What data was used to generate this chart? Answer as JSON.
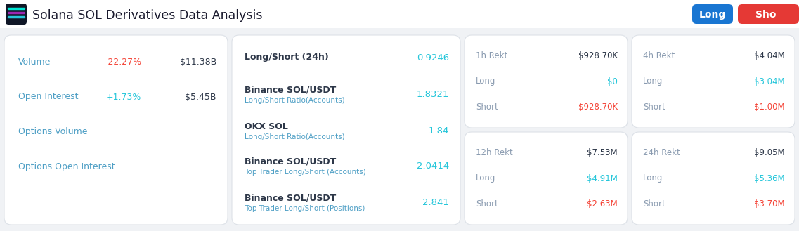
{
  "title": "Solana SOL Derivatives Data Analysis",
  "bg_color": "#f0f2f5",
  "card_color": "#ffffff",
  "header_bg": "#ffffff",
  "title_color": "#1a1a2e",
  "panel1": {
    "rows": [
      {
        "label": "Volume",
        "pct": "-22.27%",
        "pct_color": "#f44336",
        "val": "$11.38B"
      },
      {
        "label": "Open Interest",
        "pct": "+1.73%",
        "pct_color": "#26c6da",
        "val": "$5.45B"
      },
      {
        "label": "Options Volume",
        "pct": "",
        "pct_color": "",
        "val": ""
      },
      {
        "label": "Options Open Interest",
        "pct": "",
        "pct_color": "",
        "val": ""
      }
    ]
  },
  "panel2": {
    "rows": [
      {
        "label1": "Long/Short (24h)",
        "label2": "",
        "val": "0.9246"
      },
      {
        "label1": "Binance SOL/USDT",
        "label2": "Long/Short Ratio(Accounts)",
        "val": "1.8321"
      },
      {
        "label1": "OKX SOL",
        "label2": "Long/Short Ratio(Accounts)",
        "val": "1.84"
      },
      {
        "label1": "Binance SOL/USDT",
        "label2": "Top Trader Long/Short (Accounts)",
        "val": "2.0414"
      },
      {
        "label1": "Binance SOL/USDT",
        "label2": "Top Trader Long/Short (Positions)",
        "val": "2.841"
      }
    ]
  },
  "rekt_cards": [
    {
      "title": "1h Rekt",
      "title_val": "$928.70K",
      "long_val": "$0",
      "long_color": "#26c6da",
      "short_val": "$928.70K",
      "short_color": "#f44336"
    },
    {
      "title": "4h Rekt",
      "title_val": "$4.04M",
      "long_val": "$3.04M",
      "long_color": "#26c6da",
      "short_val": "$1.00M",
      "short_color": "#f44336"
    },
    {
      "title": "12h Rekt",
      "title_val": "$7.53M",
      "long_val": "$4.91M",
      "long_color": "#26c6da",
      "short_val": "$2.63M",
      "short_color": "#f44336"
    },
    {
      "title": "24h Rekt",
      "title_val": "$9.05M",
      "long_val": "$5.36M",
      "long_color": "#26c6da",
      "short_val": "$3.70M",
      "short_color": "#f44336"
    }
  ],
  "teal": "#26c6da",
  "dark": "#2d3748",
  "gray_label": "#8a9bb0",
  "label_blue": "#4e9fc5",
  "btn_long_color": "#1976d2",
  "btn_short_color": "#e53935",
  "btn_long_text": "Long",
  "btn_short_text": "Sho"
}
